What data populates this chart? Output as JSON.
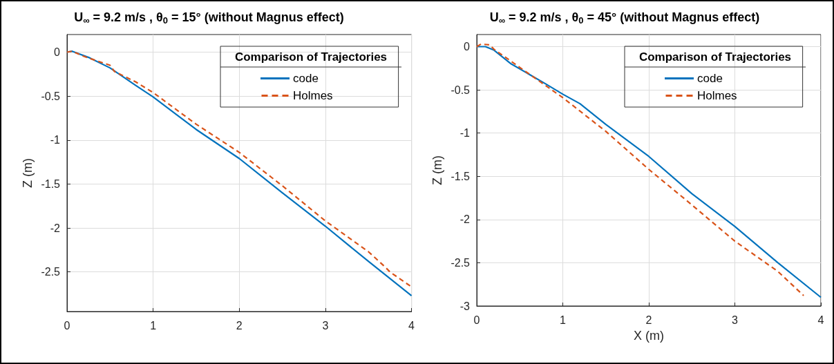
{
  "chart_data": [
    {
      "type": "line",
      "title": "U$_{∞}$ = 9.2 m/s , θ$_{0}$ = 15° (without Magnus effect)",
      "ylabel": "Z (m)",
      "legend_title": "Comparison of Trajectories",
      "legend": "top right",
      "grid": true,
      "marker": "none",
      "xlim": [
        0,
        4
      ],
      "xticks": [
        0,
        1,
        2,
        3,
        4
      ],
      "ylim": [
        -2.95,
        0.2
      ],
      "yticks": [
        -2.5,
        -2,
        -1.5,
        -1,
        -0.5,
        0
      ],
      "series": [
        {
          "name": "code",
          "color": "#0072bd",
          "line_style": "solid",
          "x": [
            0,
            0.06,
            0.25,
            0.5,
            0.8,
            1,
            1.5,
            2,
            2.5,
            3,
            3.5,
            4
          ],
          "values": [
            0,
            0.01,
            -0.06,
            -0.18,
            -0.38,
            -0.51,
            -0.88,
            -1.21,
            -1.6,
            -1.98,
            -2.38,
            -2.77
          ]
        },
        {
          "name": "Holmes",
          "color": "#d95319",
          "line_style": "dashed",
          "x": [
            0,
            0.06,
            0.2,
            0.5,
            0.55,
            0.8,
            1,
            1.5,
            2,
            2.5,
            2.8,
            3,
            3.5,
            3.7,
            3.75,
            4
          ],
          "values": [
            0,
            0.01,
            -0.05,
            -0.15,
            -0.22,
            -0.34,
            -0.46,
            -0.82,
            -1.14,
            -1.52,
            -1.76,
            -1.92,
            -2.27,
            -2.45,
            -2.5,
            -2.67
          ]
        }
      ]
    },
    {
      "type": "line",
      "title": "U$_{∞}$ = 9.2 m/s , θ$_{0}$ = 45° (without Magnus effect)",
      "xlabel": "X (m)",
      "ylabel": "Z (m)",
      "legend_title": "Comparison of Trajectories",
      "legend": "top right",
      "grid": true,
      "marker": "none",
      "xlim": [
        0,
        4
      ],
      "xticks": [
        0,
        1,
        2,
        3,
        4
      ],
      "ylim": [
        -3,
        0.14
      ],
      "yticks": [
        -3,
        -2.5,
        -2,
        -1.5,
        -1,
        -0.5,
        0
      ],
      "series": [
        {
          "name": "code",
          "color": "#0072bd",
          "line_style": "solid",
          "x": [
            0,
            0.1,
            0.2,
            0.4,
            0.8,
            1,
            1.2,
            1.5,
            2,
            2.5,
            3,
            3.5,
            4
          ],
          "values": [
            0,
            0,
            -0.04,
            -0.2,
            -0.43,
            -0.55,
            -0.66,
            -0.9,
            -1.27,
            -1.7,
            -2.08,
            -2.5,
            -2.9
          ]
        },
        {
          "name": "Holmes",
          "color": "#d95319",
          "line_style": "dashed",
          "x": [
            0,
            0.05,
            0.15,
            0.2,
            0.5,
            0.8,
            1,
            1.5,
            2,
            2.5,
            3,
            3.5,
            3.8
          ],
          "values": [
            0,
            0.03,
            0.02,
            -0.03,
            -0.24,
            -0.45,
            -0.59,
            -0.98,
            -1.42,
            -1.83,
            -2.25,
            -2.6,
            -2.88
          ]
        }
      ]
    }
  ]
}
